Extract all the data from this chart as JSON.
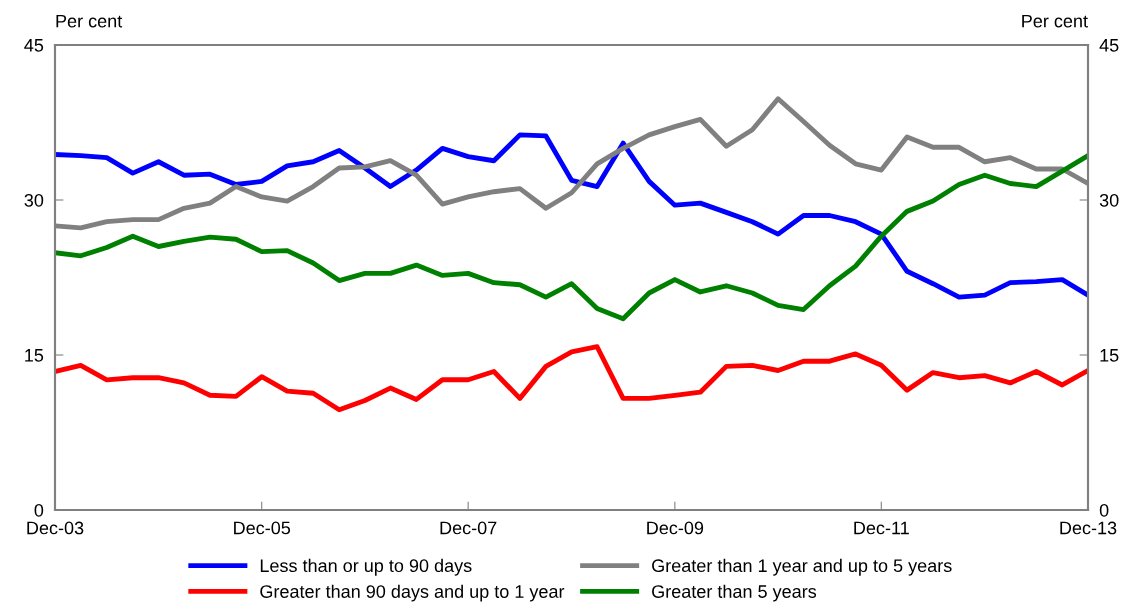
{
  "chart_data": {
    "type": "line",
    "ylabel": "Per cent",
    "y2label": "Per cent",
    "x": [
      "2003-12",
      "2004-03",
      "2004-06",
      "2004-09",
      "2004-12",
      "2005-03",
      "2005-06",
      "2005-09",
      "2005-12",
      "2006-03",
      "2006-06",
      "2006-09",
      "2006-12",
      "2007-03",
      "2007-06",
      "2007-09",
      "2007-12",
      "2008-03",
      "2008-06",
      "2008-09",
      "2008-12",
      "2009-03",
      "2009-06",
      "2009-09",
      "2009-12",
      "2010-03",
      "2010-06",
      "2010-09",
      "2010-12",
      "2011-03",
      "2011-06",
      "2011-09",
      "2011-12",
      "2012-03",
      "2012-06",
      "2012-09",
      "2012-12",
      "2013-03",
      "2013-06",
      "2013-09",
      "2013-12"
    ],
    "series": [
      {
        "name": "Less than or up to 90 days",
        "color": "#0000ff",
        "values": [
          34.4,
          34.3,
          34.1,
          32.6,
          33.7,
          32.4,
          32.5,
          31.5,
          31.8,
          33.3,
          33.7,
          34.8,
          33.1,
          31.3,
          32.9,
          35.0,
          34.2,
          33.8,
          36.3,
          36.2,
          31.9,
          31.3,
          35.5,
          31.8,
          29.5,
          29.7,
          28.8,
          27.9,
          26.7,
          28.5,
          28.5,
          27.9,
          26.7,
          23.1,
          21.9,
          20.6,
          20.8,
          22.0,
          22.1,
          22.3,
          20.8
        ]
      },
      {
        "name": "Greater than 90 days and up to 1 year",
        "color": "#ff0000",
        "values": [
          13.4,
          14.0,
          12.6,
          12.8,
          12.8,
          12.3,
          11.1,
          11.0,
          12.9,
          11.5,
          11.3,
          9.7,
          10.6,
          11.8,
          10.7,
          12.6,
          12.6,
          13.4,
          10.8,
          13.9,
          15.3,
          15.8,
          10.8,
          10.8,
          11.1,
          11.4,
          13.9,
          14.0,
          13.5,
          14.4,
          14.4,
          15.1,
          14.0,
          11.6,
          13.3,
          12.8,
          13.0,
          12.3,
          13.4,
          12.1,
          13.5
        ]
      },
      {
        "name": "Greater than 1 year and up to 5 years",
        "color": "#808080",
        "values": [
          27.5,
          27.3,
          27.9,
          28.1,
          28.1,
          29.2,
          29.7,
          31.3,
          30.3,
          29.9,
          31.3,
          33.1,
          33.2,
          33.8,
          32.4,
          29.6,
          30.3,
          30.8,
          31.1,
          29.2,
          30.7,
          33.5,
          35.0,
          36.3,
          37.1,
          37.8,
          35.2,
          36.8,
          39.8,
          37.6,
          35.3,
          33.5,
          32.9,
          36.1,
          35.1,
          35.1,
          33.7,
          34.1,
          33.0,
          33.0,
          31.6
        ]
      },
      {
        "name": "Greater than 5 years",
        "color": "#008000",
        "values": [
          24.9,
          24.6,
          25.4,
          26.5,
          25.5,
          26.0,
          26.4,
          26.2,
          25.0,
          25.1,
          23.9,
          22.2,
          22.9,
          22.9,
          23.7,
          22.7,
          22.9,
          22.0,
          21.8,
          20.6,
          21.9,
          19.5,
          18.5,
          21.0,
          22.3,
          21.1,
          21.7,
          21.0,
          19.8,
          19.4,
          21.7,
          23.6,
          26.5,
          28.9,
          29.9,
          31.5,
          32.4,
          31.6,
          31.3,
          32.8,
          34.3
        ]
      }
    ],
    "xlim": [
      "2003-12",
      "2013-12"
    ],
    "xticks": [
      {
        "value": "2003-12",
        "label": "Dec-03"
      },
      {
        "value": "2005-12",
        "label": "Dec-05"
      },
      {
        "value": "2007-12",
        "label": "Dec-07"
      },
      {
        "value": "2009-12",
        "label": "Dec-09"
      },
      {
        "value": "2011-12",
        "label": "Dec-11"
      },
      {
        "value": "2013-12",
        "label": "Dec-13"
      }
    ],
    "ylim": [
      0,
      45
    ],
    "yticks": [
      0,
      15,
      30,
      45
    ],
    "y2lim": [
      0,
      45
    ],
    "y2ticks": [
      0,
      15,
      30,
      45
    ],
    "grid": false,
    "legend": "bottom",
    "marker": "none",
    "line_style": "solid"
  }
}
